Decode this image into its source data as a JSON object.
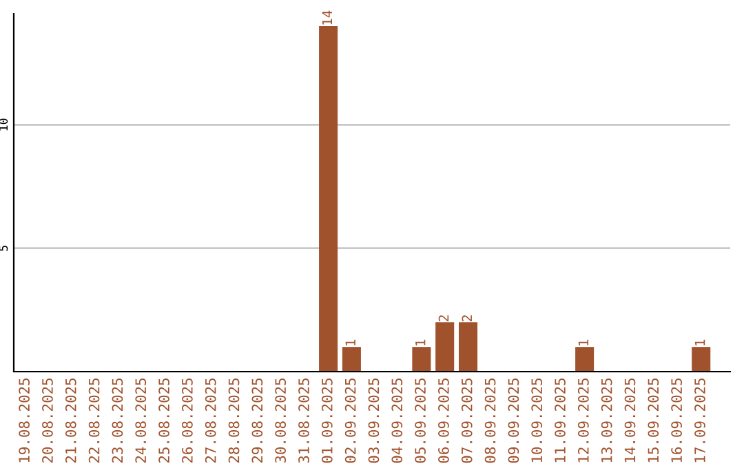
{
  "chart_data": {
    "type": "bar",
    "categories": [
      "19.08.2025",
      "20.08.2025",
      "21.08.2025",
      "22.08.2025",
      "23.08.2025",
      "24.08.2025",
      "25.08.2025",
      "26.08.2025",
      "27.08.2025",
      "28.08.2025",
      "29.08.2025",
      "30.08.2025",
      "31.08.2025",
      "01.09.2025",
      "02.09.2025",
      "03.09.2025",
      "04.09.2025",
      "05.09.2025",
      "06.09.2025",
      "07.09.2025",
      "08.09.2025",
      "09.09.2025",
      "10.09.2025",
      "11.09.2025",
      "12.09.2025",
      "13.09.2025",
      "14.09.2025",
      "15.09.2025",
      "16.09.2025",
      "17.09.2025"
    ],
    "values": [
      0,
      0,
      0,
      0,
      0,
      0,
      0,
      0,
      0,
      0,
      0,
      0,
      0,
      14,
      1,
      0,
      0,
      1,
      2,
      2,
      0,
      0,
      0,
      0,
      1,
      0,
      0,
      0,
      0,
      1
    ],
    "value_labels": [
      null,
      null,
      null,
      null,
      null,
      null,
      null,
      null,
      null,
      null,
      null,
      null,
      null,
      "14",
      "1",
      null,
      null,
      "1",
      "2",
      "2",
      null,
      null,
      null,
      null,
      "1",
      null,
      null,
      null,
      null,
      "1"
    ],
    "color": "#a0522d",
    "ylim": [
      0,
      14.5
    ],
    "yticks": [
      5,
      10
    ],
    "grid": "y",
    "legend": false
  }
}
